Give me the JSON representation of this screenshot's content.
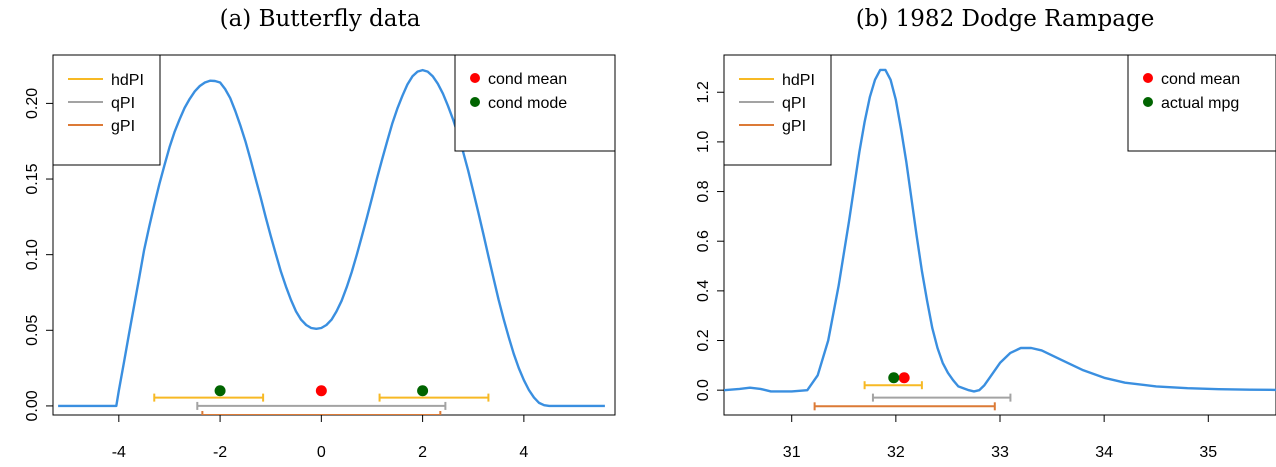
{
  "chart_data": [
    {
      "type": "line",
      "title": "(a) Butterfly data",
      "xlabel": "",
      "ylabel": "",
      "xlim": [
        -5.3,
        5.8
      ],
      "ylim": [
        -0.006,
        0.232
      ],
      "x_ticks": [
        -4,
        -2,
        0,
        2,
        4
      ],
      "x_tick_labels": [
        "-4",
        "-2",
        "0",
        "2",
        "4"
      ],
      "y_ticks": [
        0.0,
        0.05,
        0.1,
        0.15,
        0.2
      ],
      "y_tick_labels": [
        "0.00",
        "0.05",
        "0.10",
        "0.15",
        "0.20"
      ],
      "grid": false,
      "density": {
        "color": "#3a8fe0",
        "x": [
          -5.2,
          -4.2,
          -4.05,
          -4.0,
          -3.9,
          -3.8,
          -3.7,
          -3.6,
          -3.5,
          -3.4,
          -3.3,
          -3.2,
          -3.1,
          -3.0,
          -2.9,
          -2.8,
          -2.7,
          -2.6,
          -2.5,
          -2.4,
          -2.3,
          -2.2,
          -2.1,
          -2.0,
          -1.9,
          -1.8,
          -1.7,
          -1.6,
          -1.5,
          -1.4,
          -1.3,
          -1.2,
          -1.1,
          -1.0,
          -0.9,
          -0.8,
          -0.7,
          -0.6,
          -0.5,
          -0.4,
          -0.3,
          -0.2,
          -0.1,
          0.0,
          0.1,
          0.2,
          0.3,
          0.4,
          0.5,
          0.6,
          0.7,
          0.8,
          0.9,
          1.0,
          1.1,
          1.2,
          1.3,
          1.4,
          1.5,
          1.6,
          1.7,
          1.8,
          1.9,
          2.0,
          2.1,
          2.2,
          2.3,
          2.4,
          2.5,
          2.6,
          2.7,
          2.8,
          2.9,
          3.0,
          3.1,
          3.2,
          3.3,
          3.4,
          3.5,
          3.6,
          3.7,
          3.8,
          3.9,
          4.0,
          4.1,
          4.2,
          4.3,
          4.4,
          4.5,
          4.6,
          4.7,
          4.75,
          5.0,
          5.6
        ],
        "y": [
          0.0,
          0.0,
          0.0,
          0.01,
          0.0286,
          0.0472,
          0.0658,
          0.0844,
          0.103,
          0.1185,
          0.133,
          0.1465,
          0.159,
          0.171,
          0.181,
          0.1895,
          0.197,
          0.203,
          0.208,
          0.2115,
          0.2138,
          0.215,
          0.2148,
          0.2138,
          0.2095,
          0.2035,
          0.195,
          0.1855,
          0.175,
          0.163,
          0.1505,
          0.138,
          0.125,
          0.1125,
          0.1005,
          0.089,
          0.079,
          0.07,
          0.0625,
          0.057,
          0.0535,
          0.0515,
          0.051,
          0.0515,
          0.0535,
          0.057,
          0.0625,
          0.0695,
          0.0785,
          0.0885,
          0.1,
          0.112,
          0.1245,
          0.1375,
          0.1505,
          0.163,
          0.175,
          0.1865,
          0.1965,
          0.205,
          0.2125,
          0.218,
          0.221,
          0.222,
          0.221,
          0.218,
          0.213,
          0.2065,
          0.1985,
          0.1895,
          0.1795,
          0.168,
          0.1555,
          0.142,
          0.128,
          0.1135,
          0.099,
          0.0845,
          0.0705,
          0.0575,
          0.0455,
          0.0345,
          0.025,
          0.017,
          0.0105,
          0.0055,
          0.002,
          0.0005,
          0.0,
          0.0,
          0.0,
          0.0,
          0.0,
          0.0
        ]
      },
      "intervals": [
        {
          "name": "hdPI",
          "color": "#f7b924",
          "segments": [
            [
              -3.3,
              -1.15
            ],
            [
              1.15,
              3.3
            ]
          ],
          "y": 0.0055
        },
        {
          "name": "qPI",
          "color": "#a3a3a3",
          "segments": [
            [
              -2.45,
              2.45
            ]
          ],
          "y": 0.0
        },
        {
          "name": "gPI",
          "color": "#dc7a36",
          "segments": [
            [
              -2.35,
              2.35
            ]
          ],
          "y": -0.006
        }
      ],
      "points": [
        {
          "name": "cond mean",
          "color": "#ff0000",
          "x": [
            0.0
          ],
          "y": [
            0.01
          ]
        },
        {
          "name": "cond mode",
          "color": "#006400",
          "x": [
            -2.0,
            2.0
          ],
          "y": [
            0.01,
            0.01
          ]
        }
      ],
      "legend_left": [
        "hdPI",
        "qPI",
        "gPI"
      ],
      "legend_left_colors": [
        "#f7b924",
        "#a3a3a3",
        "#dc7a36"
      ],
      "legend_right": [
        "cond mean",
        "cond mode"
      ],
      "legend_right_colors": [
        "#ff0000",
        "#006400"
      ],
      "legend_placement": [
        "top-left",
        "top-right"
      ]
    },
    {
      "type": "line",
      "title": "(b) 1982 Dodge Rampage",
      "xlabel": "",
      "ylabel": "",
      "xlim": [
        30.35,
        35.65
      ],
      "ylim": [
        -0.1,
        1.35
      ],
      "x_ticks": [
        31,
        32,
        33,
        34,
        35
      ],
      "x_tick_labels": [
        "31",
        "32",
        "33",
        "34",
        "35"
      ],
      "y_ticks": [
        0.0,
        0.2,
        0.4,
        0.6,
        0.8,
        1.0,
        1.2
      ],
      "y_tick_labels": [
        "0.0",
        "0.2",
        "0.4",
        "0.6",
        "0.8",
        "1.0",
        "1.2"
      ],
      "grid": false,
      "density": {
        "color": "#3a8fe0",
        "x": [
          30.35,
          30.5,
          30.6,
          30.7,
          30.8,
          31.0,
          31.15,
          31.25,
          31.35,
          31.45,
          31.55,
          31.6,
          31.65,
          31.7,
          31.75,
          31.8,
          31.85,
          31.9,
          31.95,
          32.0,
          32.05,
          32.1,
          32.15,
          32.2,
          32.25,
          32.3,
          32.35,
          32.4,
          32.45,
          32.5,
          32.55,
          32.6,
          32.7,
          32.75,
          32.8,
          32.85,
          32.9,
          33.0,
          33.1,
          33.2,
          33.3,
          33.4,
          33.5,
          33.6,
          33.8,
          34.0,
          34.2,
          34.5,
          34.8,
          35.1,
          35.4,
          35.65
        ],
        "y": [
          0.0,
          0.005,
          0.01,
          0.005,
          -0.005,
          -0.005,
          0.0,
          0.06,
          0.2,
          0.42,
          0.68,
          0.82,
          0.96,
          1.08,
          1.18,
          1.25,
          1.29,
          1.29,
          1.25,
          1.17,
          1.05,
          0.92,
          0.77,
          0.62,
          0.48,
          0.36,
          0.25,
          0.17,
          0.11,
          0.07,
          0.04,
          0.015,
          0.0,
          -0.005,
          0.0,
          0.02,
          0.05,
          0.11,
          0.15,
          0.17,
          0.17,
          0.16,
          0.14,
          0.12,
          0.08,
          0.05,
          0.03,
          0.015,
          0.008,
          0.004,
          0.002,
          0.001
        ]
      },
      "intervals": [
        {
          "name": "hdPI",
          "color": "#f7b924",
          "segments": [
            [
              31.7,
              32.25
            ]
          ],
          "y": 0.02
        },
        {
          "name": "qPI",
          "color": "#a3a3a3",
          "segments": [
            [
              31.78,
              33.1
            ]
          ],
          "y": -0.03
        },
        {
          "name": "gPI",
          "color": "#dc7a36",
          "segments": [
            [
              31.22,
              32.95
            ]
          ],
          "y": -0.065
        }
      ],
      "points": [
        {
          "name": "cond mean",
          "color": "#ff0000",
          "x": [
            32.08
          ],
          "y": [
            0.05
          ]
        },
        {
          "name": "actual mpg",
          "color": "#006400",
          "x": [
            31.98
          ],
          "y": [
            0.05
          ]
        }
      ],
      "legend_left": [
        "hdPI",
        "qPI",
        "gPI"
      ],
      "legend_left_colors": [
        "#f7b924",
        "#a3a3a3",
        "#dc7a36"
      ],
      "legend_right": [
        "cond mean",
        "actual mpg"
      ],
      "legend_right_colors": [
        "#ff0000",
        "#006400"
      ],
      "legend_placement": [
        "top-left",
        "top-right"
      ]
    }
  ]
}
